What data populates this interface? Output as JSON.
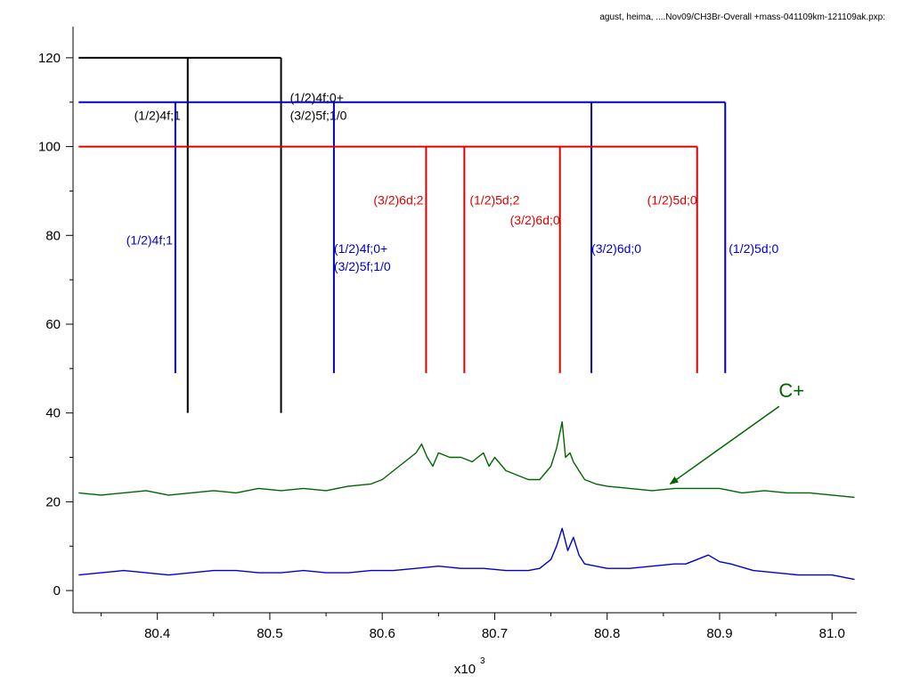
{
  "chart_data": {
    "type": "line",
    "title": "agust, heima, ....Nov09/CH3Br-Overall +mass-041109km-121109ak.pxp:",
    "xlabel": "x10",
    "xlabel_exponent": "3",
    "ylabel": "",
    "xlim": [
      80.325,
      81.022
    ],
    "ylim": [
      -5,
      127
    ],
    "x_ticks": [
      80.4,
      80.5,
      80.6,
      80.7,
      80.8,
      80.9,
      81.0
    ],
    "x_tick_labels": [
      "80.4",
      "80.5",
      "80.6",
      "80.7",
      "80.8",
      "80.9",
      "81.0"
    ],
    "y_ticks": [
      0,
      20,
      40,
      60,
      80,
      100,
      120
    ],
    "y_tick_labels": [
      "0",
      "20",
      "40",
      "60",
      "80",
      "100",
      "120"
    ],
    "grid": false,
    "colors": {
      "black": "#000000",
      "blue": "#0000cc",
      "red": "#dd0000",
      "green": "#006400"
    },
    "assignment_combs": [
      {
        "color": "#000000",
        "base_y": 120,
        "x_start": 80.33,
        "lines": [
          {
            "x": 80.427,
            "bottom": 40,
            "label": "(1/2)4f;1",
            "label_y": 106,
            "label_anchor": "end",
            "label_dx": -8
          },
          {
            "x": 80.51,
            "bottom": 40,
            "label": "(1/2)4f;0+|(3/2)5f;1/0",
            "label_y": 110,
            "label_anchor": "start",
            "label_dx": 10
          }
        ]
      },
      {
        "color": "#0000cc",
        "base_y": 110,
        "x_start": 80.33,
        "lines": [
          {
            "x": 80.416,
            "bottom": 49,
            "label": "(1/2)4f;1",
            "label_y": 78,
            "label_anchor": "end",
            "label_dx": -3
          },
          {
            "x": 80.557,
            "bottom": 49,
            "label": "(1/2)4f;0+|(3/2)5f;1/0",
            "label_y": 76,
            "label_anchor": "start",
            "label_dx": 0
          },
          {
            "x": 80.786,
            "bottom": 49,
            "label": "(3/2)6d;0",
            "label_y": 76,
            "label_anchor": "start",
            "label_dx": 0
          },
          {
            "x": 80.905,
            "bottom": 49,
            "label": "(1/2)5d;0",
            "label_y": 76,
            "label_anchor": "start",
            "label_dx": 4
          }
        ]
      },
      {
        "color": "#dd0000",
        "base_y": 100,
        "x_start": 80.33,
        "lines": [
          {
            "x": 80.639,
            "bottom": 49,
            "label": "(3/2)6d;2",
            "label_y": 87,
            "label_anchor": "end",
            "label_dx": -3
          },
          {
            "x": 80.673,
            "bottom": 49,
            "label": "(1/2)5d;2",
            "label_y": 87,
            "label_anchor": "start",
            "label_dx": 6
          },
          {
            "x": 80.758,
            "bottom": 49,
            "label": "(3/2)6d;0",
            "label_y": 82.5,
            "label_anchor": "end",
            "label_dx": 0
          },
          {
            "x": 80.88,
            "bottom": 49,
            "label": "(1/2)5d;0",
            "label_y": 87,
            "label_anchor": "end",
            "label_dx": 0
          }
        ]
      }
    ],
    "series": [
      {
        "name": "",
        "color": "#006400",
        "x": [
          80.33,
          80.35,
          80.37,
          80.39,
          80.41,
          80.43,
          80.45,
          80.47,
          80.49,
          80.51,
          80.53,
          80.55,
          80.57,
          80.59,
          80.6,
          80.61,
          80.62,
          80.63,
          80.635,
          80.64,
          80.645,
          80.65,
          80.66,
          80.67,
          80.68,
          80.69,
          80.695,
          80.7,
          80.71,
          80.72,
          80.73,
          80.74,
          80.75,
          80.755,
          80.76,
          80.763,
          80.767,
          80.77,
          80.775,
          80.78,
          80.79,
          80.8,
          80.82,
          80.84,
          80.86,
          80.88,
          80.9,
          80.92,
          80.94,
          80.96,
          80.98,
          81.0,
          81.02
        ],
        "y": [
          22,
          21.5,
          22,
          22.5,
          21.5,
          22,
          22.5,
          22,
          23,
          22.5,
          23,
          22.5,
          23.5,
          24,
          25,
          27,
          29,
          31,
          33,
          30,
          28,
          31,
          30,
          30,
          29,
          31,
          28,
          30,
          27,
          26,
          25,
          25,
          28,
          32,
          38,
          30,
          31,
          29,
          27,
          25,
          24,
          23.5,
          23,
          22.5,
          23,
          23,
          23,
          22,
          22.5,
          22,
          22,
          21.5,
          21
        ]
      },
      {
        "name": "",
        "color": "#0000cc",
        "x": [
          80.33,
          80.35,
          80.37,
          80.39,
          80.41,
          80.43,
          80.45,
          80.47,
          80.49,
          80.51,
          80.53,
          80.55,
          80.57,
          80.59,
          80.61,
          80.63,
          80.65,
          80.67,
          80.69,
          80.71,
          80.73,
          80.74,
          80.75,
          80.755,
          80.76,
          80.765,
          80.77,
          80.775,
          80.78,
          80.79,
          80.8,
          80.82,
          80.84,
          80.86,
          80.87,
          80.88,
          80.89,
          80.9,
          80.91,
          80.93,
          80.95,
          80.97,
          81.0,
          81.02
        ],
        "y": [
          3.5,
          4,
          4.5,
          4,
          3.5,
          4,
          4.5,
          4.5,
          4,
          4,
          4.5,
          4,
          4,
          4.5,
          4.5,
          5,
          5.5,
          5,
          5,
          4.5,
          4.5,
          5,
          7,
          10,
          14,
          9,
          12,
          8,
          6,
          5.5,
          5,
          5,
          5.5,
          6,
          6,
          7,
          8,
          6.5,
          6,
          4.5,
          4,
          3.5,
          3.5,
          2.5
        ]
      }
    ],
    "annotations": [
      {
        "text": "C+",
        "color": "#006400",
        "x": 80.964,
        "y": 43.5,
        "arrow_from": [
          80.953,
          41.5
        ],
        "arrow_to": [
          80.856,
          24
        ]
      }
    ]
  }
}
